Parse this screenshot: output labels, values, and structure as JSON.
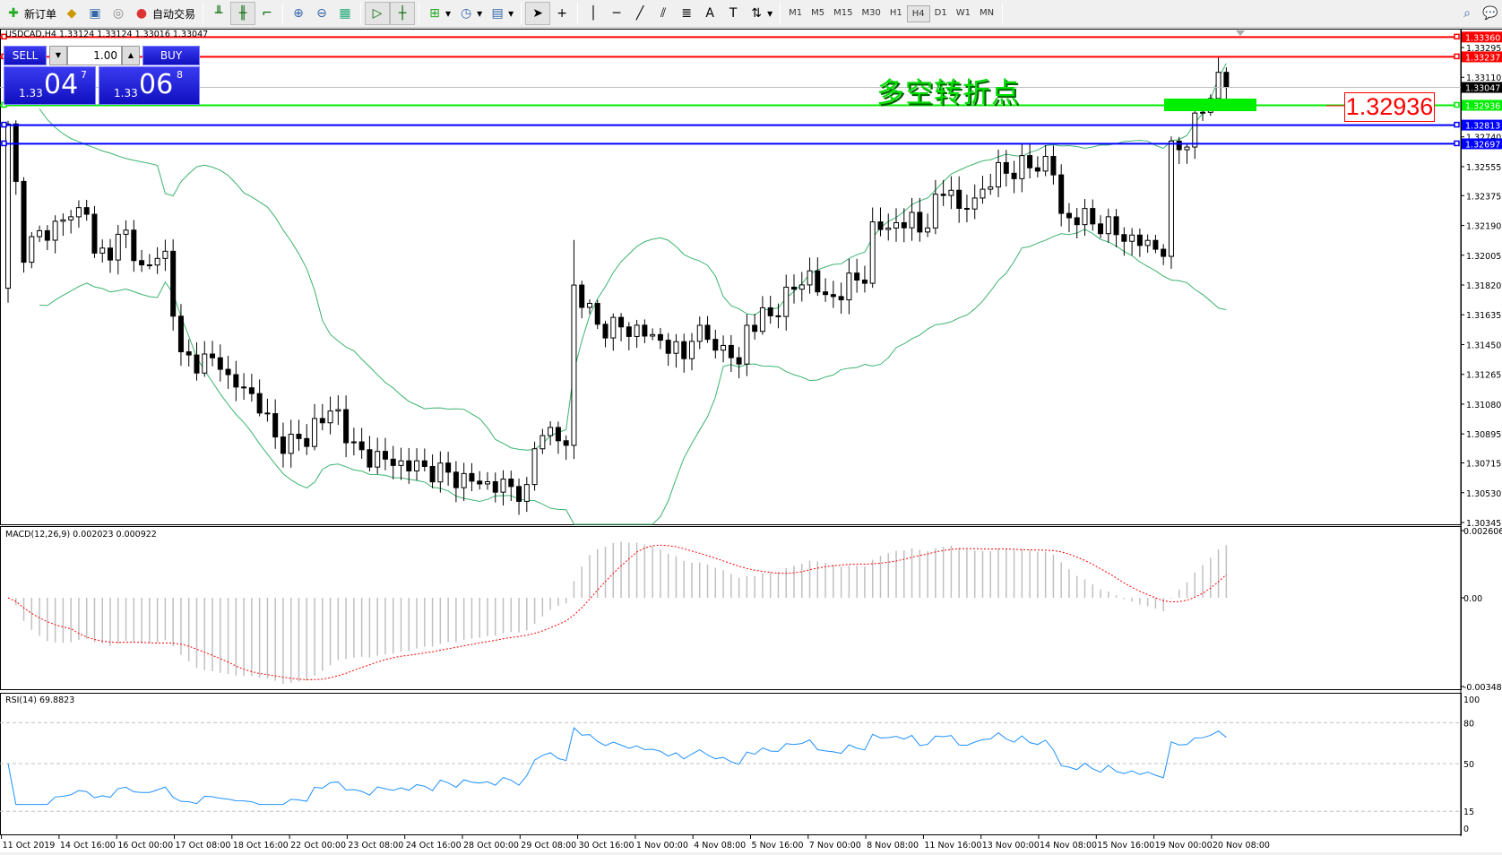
{
  "toolbar": {
    "new_order": "新订单",
    "auto_trading": "自动交易",
    "timeframes": [
      "M1",
      "M5",
      "M15",
      "M30",
      "H1",
      "H4",
      "D1",
      "W1",
      "MN"
    ],
    "active_timeframe": "H4",
    "icons": [
      "market-watch-icon",
      "navigator-icon",
      "signals-icon",
      "bar-chart-icon",
      "candlestick-icon",
      "line-chart-icon",
      "zoom-in-icon",
      "zoom-out-icon",
      "tile-windows-icon",
      "autoscroll-icon",
      "chart-shift-icon",
      "indicators-icon",
      "periods-icon",
      "templates-icon",
      "cursor-icon",
      "crosshair-icon",
      "vertical-line-icon",
      "horizontal-line-icon",
      "trendline-icon",
      "fibonacci-icon",
      "fibo-fan-icon",
      "text-icon",
      "text-label-icon",
      "arrows-icon"
    ]
  },
  "chart": {
    "title": "USDCAD,H4  1.33124 1.33124 1.33016 1.33047",
    "symbol": "USDCAD",
    "timeframe": "H4",
    "one_click": {
      "sell": "SELL",
      "buy": "BUY",
      "lot": "1.00",
      "bid_prefix": "1.33",
      "bid_big": "04",
      "bid_pip": "7",
      "ask_prefix": "1.33",
      "ask_big": "06",
      "ask_pip": "8"
    },
    "annotation": "多空转折点",
    "annotation_price": "1.32936",
    "price_axis": [
      "1.33295",
      "1.33110",
      "1.32740",
      "1.32555",
      "1.32375",
      "1.32190",
      "1.32005",
      "1.31820",
      "1.31635",
      "1.31450",
      "1.31265",
      "1.31080",
      "1.30895",
      "1.30715",
      "1.30530",
      "1.30345"
    ],
    "hlines": [
      {
        "price": "1.33360",
        "color": "#ff0000"
      },
      {
        "price": "1.33237",
        "color": "#ff0000"
      },
      {
        "price": "1.32936",
        "color": "#00ee00"
      },
      {
        "price": "1.32813",
        "color": "#0000ff"
      },
      {
        "price": "1.32697",
        "color": "#0000ff"
      }
    ],
    "current_price": "1.33047",
    "close_keypoints": [
      [
        0,
        1.3282
      ],
      [
        2,
        1.3204
      ],
      [
        5,
        1.3216
      ],
      [
        10,
        1.3231
      ],
      [
        11,
        1.3198
      ],
      [
        15,
        1.3213
      ],
      [
        17,
        1.3192
      ],
      [
        20,
        1.3201
      ],
      [
        22,
        1.3136
      ],
      [
        27,
        1.3134
      ],
      [
        28,
        1.3124
      ],
      [
        32,
        1.3109
      ],
      [
        34,
        1.3085
      ],
      [
        38,
        1.3085
      ],
      [
        39,
        1.3097
      ],
      [
        42,
        1.3103
      ],
      [
        44,
        1.3079
      ],
      [
        48,
        1.3073
      ],
      [
        54,
        1.3067
      ],
      [
        58,
        1.3061
      ],
      [
        65,
        1.3055
      ],
      [
        66,
        1.3052
      ],
      [
        67,
        1.3079
      ],
      [
        68,
        1.3094
      ],
      [
        71,
        1.3082
      ],
      [
        72,
        1.3181
      ],
      [
        75,
        1.3157
      ],
      [
        80,
        1.3154
      ],
      [
        84,
        1.3145
      ],
      [
        86,
        1.3136
      ],
      [
        87,
        1.3154
      ],
      [
        92,
        1.3139
      ],
      [
        93,
        1.313
      ],
      [
        94,
        1.3157
      ],
      [
        97,
        1.3163
      ],
      [
        99,
        1.3175
      ],
      [
        102,
        1.3189
      ],
      [
        104,
        1.3172
      ],
      [
        109,
        1.3189
      ],
      [
        110,
        1.3216
      ],
      [
        115,
        1.3222
      ],
      [
        116,
        1.3216
      ],
      [
        120,
        1.3246
      ],
      [
        121,
        1.3225
      ],
      [
        126,
        1.3252
      ],
      [
        132,
        1.3258
      ],
      [
        133,
        1.3252
      ],
      [
        134,
        1.3225
      ],
      [
        138,
        1.3222
      ],
      [
        143,
        1.321
      ],
      [
        147,
        1.3204
      ],
      [
        148,
        1.3264
      ],
      [
        150,
        1.3273
      ],
      [
        153,
        1.33
      ],
      [
        154,
        1.3312
      ],
      [
        155,
        1.33047
      ]
    ],
    "colors": {
      "bands": "#3cb371",
      "bull": "#ffffff",
      "bear": "#000000"
    }
  },
  "macd": {
    "label": "MACD(12,26,9) 0.002023 0.000922",
    "axis": [
      "0.002606",
      "0.00",
      "-0.003481"
    ],
    "colors": {
      "hist": "#c0c0c0",
      "signal": "#ff0000"
    }
  },
  "rsi": {
    "label": "RSI(14) 69.8823",
    "axis": [
      "100",
      "80",
      "50",
      "15",
      "0"
    ],
    "color": "#1e90ff"
  },
  "time_axis": [
    "11 Oct 2019",
    "14 Oct 16:00",
    "16 Oct 00:00",
    "17 Oct 08:00",
    "18 Oct 16:00",
    "22 Oct 00:00",
    "23 Oct 08:00",
    "24 Oct 16:00",
    "28 Oct 00:00",
    "29 Oct 08:00",
    "30 Oct 16:00",
    "1 Nov 00:00",
    "4 Nov 08:00",
    "5 Nov 16:00",
    "7 Nov 00:00",
    "8 Nov 08:00",
    "11 Nov 16:00",
    "13 Nov 00:00",
    "14 Nov 08:00",
    "15 Nov 16:00",
    "19 Nov 00:00",
    "20 Nov 08:00"
  ]
}
